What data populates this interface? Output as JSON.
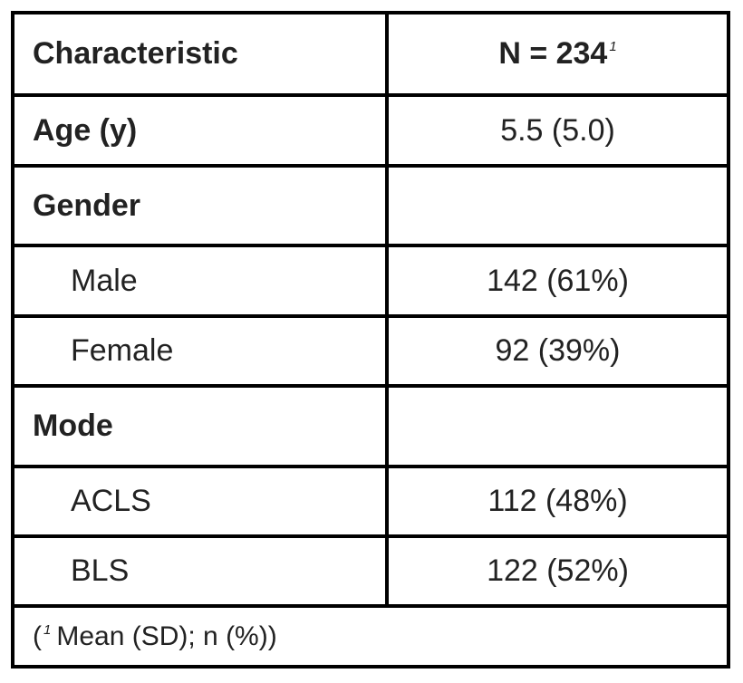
{
  "header": {
    "columns": [
      "Characteristic",
      {
        "label": "N = 234",
        "marker": "1"
      }
    ]
  },
  "rows": [
    {
      "label": "Age (y)",
      "value": "5.5 (5.0)"
    },
    {
      "label": "Gender",
      "levels": [
        {
          "label": "Male",
          "value": "142 (61%)"
        },
        {
          "label": "Female",
          "value": "92 (39%)"
        }
      ]
    },
    {
      "label": "Mode",
      "levels": [
        {
          "label": "ACLS",
          "value": "112 (48%)"
        },
        {
          "label": "BLS",
          "value": "122 (52%)"
        }
      ]
    }
  ],
  "footnote": {
    "prefix": "(",
    "marker": "1",
    "text": "Mean (SD); n (%))"
  }
}
